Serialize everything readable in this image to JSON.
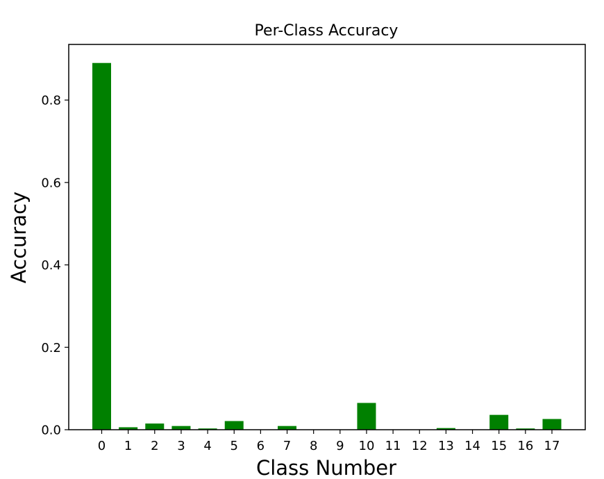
{
  "chart_data": {
    "type": "bar",
    "title": "Per-Class Accuracy",
    "xlabel": "Class Number",
    "ylabel": "Accuracy",
    "categories": [
      "0",
      "1",
      "2",
      "3",
      "4",
      "5",
      "6",
      "7",
      "8",
      "9",
      "10",
      "11",
      "12",
      "13",
      "14",
      "15",
      "16",
      "17"
    ],
    "values": [
      0.89,
      0.006,
      0.015,
      0.009,
      0.003,
      0.021,
      0.0,
      0.009,
      0.0,
      0.0,
      0.065,
      0.0,
      0.0,
      0.004,
      0.0,
      0.036,
      0.003,
      0.026
    ],
    "ylim": [
      0,
      0.935
    ],
    "yticks": [
      0.0,
      0.2,
      0.4,
      0.6,
      0.8
    ],
    "ytick_labels": [
      "0.0",
      "0.2",
      "0.4",
      "0.6",
      "0.8"
    ],
    "bar_color": "#008000",
    "grid": false,
    "legend": "none"
  }
}
